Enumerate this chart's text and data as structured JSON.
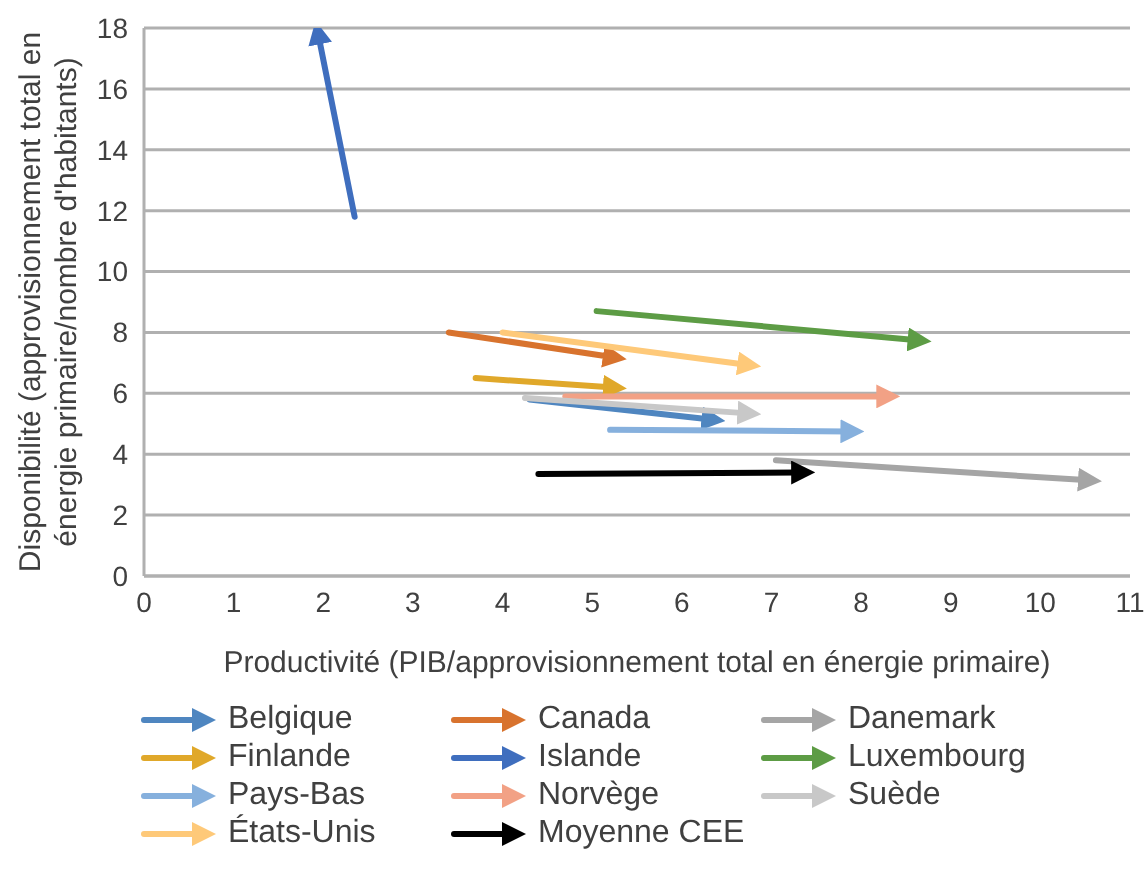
{
  "chart_data": {
    "type": "line",
    "xlabel": "Productivité (PIB/approvisionnement total en énergie primaire)",
    "ylabel": "Disponibilité (approvisionnement total en énergie primaire/nombre d'habitants)",
    "xlim": [
      0,
      11
    ],
    "xticks": [
      0,
      1,
      2,
      3,
      4,
      5,
      6,
      7,
      8,
      9,
      10,
      11
    ],
    "ylim": [
      0,
      18
    ],
    "yticks": [
      0,
      2,
      4,
      6,
      8,
      10,
      12,
      14,
      16,
      18
    ],
    "grid": "y",
    "legend": "bottom",
    "marker": "none",
    "line_style": "solid",
    "series": [
      {
        "name": "Belgique",
        "color": "#4f86c0",
        "x": [
          4.3,
          6.3
        ],
        "values": [
          5.8,
          5.15
        ]
      },
      {
        "name": "Canada",
        "color": "#d8732e",
        "x": [
          3.4,
          5.2
        ],
        "values": [
          8.0,
          7.2
        ]
      },
      {
        "name": "Danemark",
        "color": "#a5a5a5",
        "x": [
          7.05,
          10.5
        ],
        "values": [
          3.8,
          3.15
        ]
      },
      {
        "name": "Finlande",
        "color": "#e0a82a",
        "x": [
          3.7,
          5.2
        ],
        "values": [
          6.5,
          6.2
        ]
      },
      {
        "name": "Islande",
        "color": "#3f6ebe",
        "x": [
          2.35,
          1.95
        ],
        "values": [
          11.8,
          17.7
        ]
      },
      {
        "name": "Luxembourg",
        "color": "#5d9c45",
        "x": [
          5.05,
          8.6
        ],
        "values": [
          8.7,
          7.75
        ]
      },
      {
        "name": "Pays-Bas",
        "color": "#86b0dd",
        "x": [
          5.2,
          7.85
        ],
        "values": [
          4.8,
          4.75
        ]
      },
      {
        "name": "Norvège",
        "color": "#f2a185",
        "x": [
          4.7,
          8.25
        ],
        "values": [
          5.9,
          5.9
        ]
      },
      {
        "name": "Suède",
        "color": "#c8c8c8",
        "x": [
          4.25,
          6.7
        ],
        "values": [
          5.85,
          5.35
        ]
      },
      {
        "name": "États-Unis",
        "color": "#fec979",
        "x": [
          4.0,
          6.7
        ],
        "values": [
          8.0,
          6.95
        ]
      },
      {
        "name": "Moyenne CEE",
        "color": "#000000",
        "x": [
          4.4,
          7.3
        ],
        "values": [
          3.35,
          3.4
        ]
      }
    ]
  }
}
